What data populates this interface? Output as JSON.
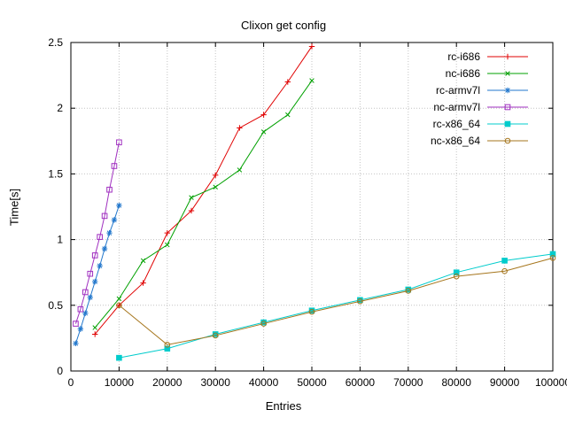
{
  "title": "Clixon get config",
  "chart_data": {
    "type": "line",
    "title": "Clixon get config",
    "xlabel": "Entries",
    "ylabel": "Time[s]",
    "xlim": [
      0,
      100000
    ],
    "ylim": [
      0,
      2.5
    ],
    "xticks": [
      0,
      10000,
      20000,
      30000,
      40000,
      50000,
      60000,
      70000,
      80000,
      90000,
      100000
    ],
    "yticks": [
      0,
      0.5,
      1,
      1.5,
      2,
      2.5
    ],
    "grid": true,
    "legend_position": "top-right-inside",
    "background": "#ffffff",
    "grid_color": "#c4c4c4",
    "series": [
      {
        "name": "rc-i686",
        "color": "#e00000",
        "marker": "plus",
        "x": [
          5000,
          10000,
          15000,
          20000,
          25000,
          30000,
          35000,
          40000,
          45000,
          50000
        ],
        "y": [
          0.28,
          0.5,
          0.67,
          1.05,
          1.22,
          1.49,
          1.85,
          1.95,
          2.2,
          2.47
        ]
      },
      {
        "name": "nc-i686",
        "color": "#00a000",
        "marker": "cross",
        "x": [
          5000,
          10000,
          15000,
          20000,
          25000,
          30000,
          35000,
          40000,
          45000,
          50000
        ],
        "y": [
          0.33,
          0.55,
          0.84,
          0.96,
          1.32,
          1.4,
          1.53,
          1.82,
          1.95,
          2.21
        ]
      },
      {
        "name": "rc-armv7l",
        "color": "#2277cc",
        "marker": "asterisk",
        "x": [
          1000,
          2000,
          3000,
          4000,
          5000,
          6000,
          7000,
          8000,
          9000,
          10000
        ],
        "y": [
          0.21,
          0.32,
          0.44,
          0.56,
          0.68,
          0.8,
          0.93,
          1.05,
          1.15,
          1.26
        ]
      },
      {
        "name": "nc-armv7l",
        "color": "#a030c0",
        "marker": "square-open",
        "x": [
          1000,
          2000,
          3000,
          4000,
          5000,
          6000,
          7000,
          8000,
          9000,
          10000
        ],
        "y": [
          0.36,
          0.47,
          0.6,
          0.74,
          0.88,
          1.02,
          1.18,
          1.38,
          1.56,
          1.74
        ]
      },
      {
        "name": "rc-x86_64",
        "color": "#00cccc",
        "marker": "square-filled",
        "x": [
          10000,
          20000,
          30000,
          40000,
          50000,
          60000,
          70000,
          80000,
          90000,
          100000
        ],
        "y": [
          0.1,
          0.17,
          0.28,
          0.37,
          0.46,
          0.54,
          0.62,
          0.75,
          0.84,
          0.89
        ]
      },
      {
        "name": "nc-x86_64",
        "color": "#a6761d",
        "marker": "circle-open",
        "x": [
          10000,
          20000,
          30000,
          40000,
          50000,
          60000,
          70000,
          80000,
          90000,
          100000
        ],
        "y": [
          0.5,
          0.2,
          0.27,
          0.36,
          0.45,
          0.53,
          0.61,
          0.72,
          0.76,
          0.86
        ]
      }
    ]
  }
}
